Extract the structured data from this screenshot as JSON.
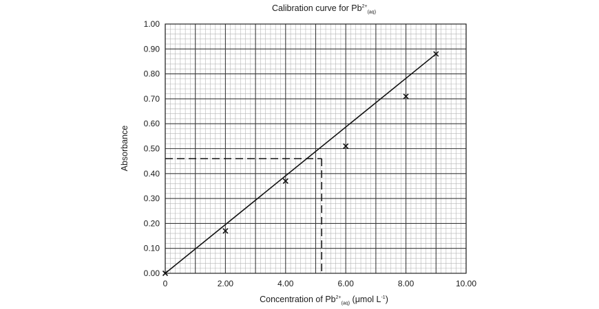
{
  "chart_data": {
    "type": "scatter",
    "title": "Calibration curve for Pb",
    "title_sup": "2+",
    "title_sub": "(aq)",
    "xlabel": "Concentration of Pb",
    "xlabel_sup": "2+",
    "xlabel_sub": "(aq)",
    "xlabel_unit_prefix": " (μmol L",
    "xlabel_unit_sup": "-1",
    "xlabel_unit_suffix": ")",
    "ylabel": "Absorbance",
    "xlim": [
      0,
      10
    ],
    "ylim": [
      0,
      1
    ],
    "grid": true,
    "x_ticks": [
      0,
      2,
      4,
      6,
      8,
      10
    ],
    "x_tick_labels": [
      "0",
      "2.00",
      "4.00",
      "6.00",
      "8.00",
      "10.00"
    ],
    "y_ticks": [
      0,
      0.1,
      0.2,
      0.3,
      0.4,
      0.5,
      0.6,
      0.7,
      0.8,
      0.9,
      1.0
    ],
    "y_tick_labels": [
      "0.00",
      "0.10",
      "0.20",
      "0.30",
      "0.40",
      "0.50",
      "0.60",
      "0.70",
      "0.80",
      "0.90",
      "1.00"
    ],
    "points": [
      {
        "x": 0,
        "y": 0
      },
      {
        "x": 2,
        "y": 0.17
      },
      {
        "x": 4,
        "y": 0.37
      },
      {
        "x": 6,
        "y": 0.51
      },
      {
        "x": 8,
        "y": 0.71
      },
      {
        "x": 9,
        "y": 0.88
      }
    ],
    "fit_line": {
      "x": [
        0,
        9
      ],
      "y": [
        0,
        0.88
      ]
    },
    "interpolation": {
      "x": 5.2,
      "y": 0.46,
      "style": "dashed"
    }
  }
}
